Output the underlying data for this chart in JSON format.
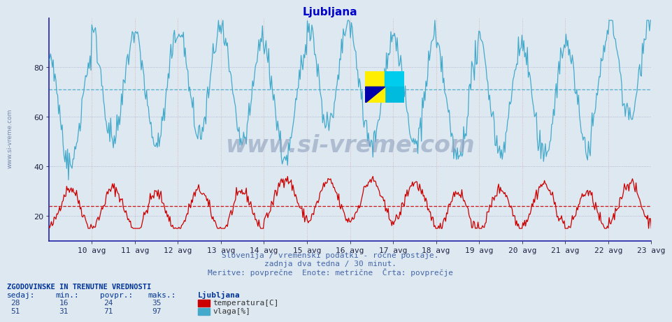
{
  "title": "Ljubljana",
  "title_color": "#0000cc",
  "title_fontsize": 11,
  "bg_color": "#dde8f0",
  "plot_bg_color": "#dde8f0",
  "xlabel_dates": [
    "10 avg",
    "11 avg",
    "12 avg",
    "13 avg",
    "14 avg",
    "15 avg",
    "16 avg",
    "17 avg",
    "18 avg",
    "19 avg",
    "20 avg",
    "21 avg",
    "22 avg",
    "23 avg"
  ],
  "yticks": [
    20,
    40,
    60,
    80
  ],
  "ylim": [
    10,
    100
  ],
  "temp_color": "#cc0000",
  "humid_color": "#44aacc",
  "avg_temp": 24,
  "avg_humid": 71,
  "vline_color": "#dd6666",
  "hgrid_color": "#aaaacc",
  "vgrid_color": "#ddaaaa",
  "spine_color": "#2222aa",
  "footer_line1": "Slovenija / vremenski podatki - ročne postaje.",
  "footer_line2": "zadnja dva tedna / 30 minut.",
  "footer_line3": "Meritve: povprečne  Enote: metrične  Črta: povprečje",
  "footer_color": "#4466aa",
  "table_header": "ZGODOVINSKE IN TRENUTNE VREDNOSTI",
  "table_cols": [
    "sedaj:",
    "min.:",
    "povpr.:",
    "maks.:"
  ],
  "table_row1": [
    "28",
    "16",
    "24",
    "35"
  ],
  "table_row2": [
    "51",
    "31",
    "71",
    "97"
  ],
  "table_label1": "Ljubljana",
  "table_label2": "temperatura[C]",
  "table_label3": "vlaga[%]",
  "watermark": "www.si-vreme.com",
  "watermark_color": "#8899bb",
  "n_points": 672,
  "days": 14,
  "temp_min": 16,
  "temp_max": 35,
  "humid_min": 31,
  "humid_max": 97,
  "side_text": "www.si-vreme.com",
  "side_text_color": "#7788aa"
}
